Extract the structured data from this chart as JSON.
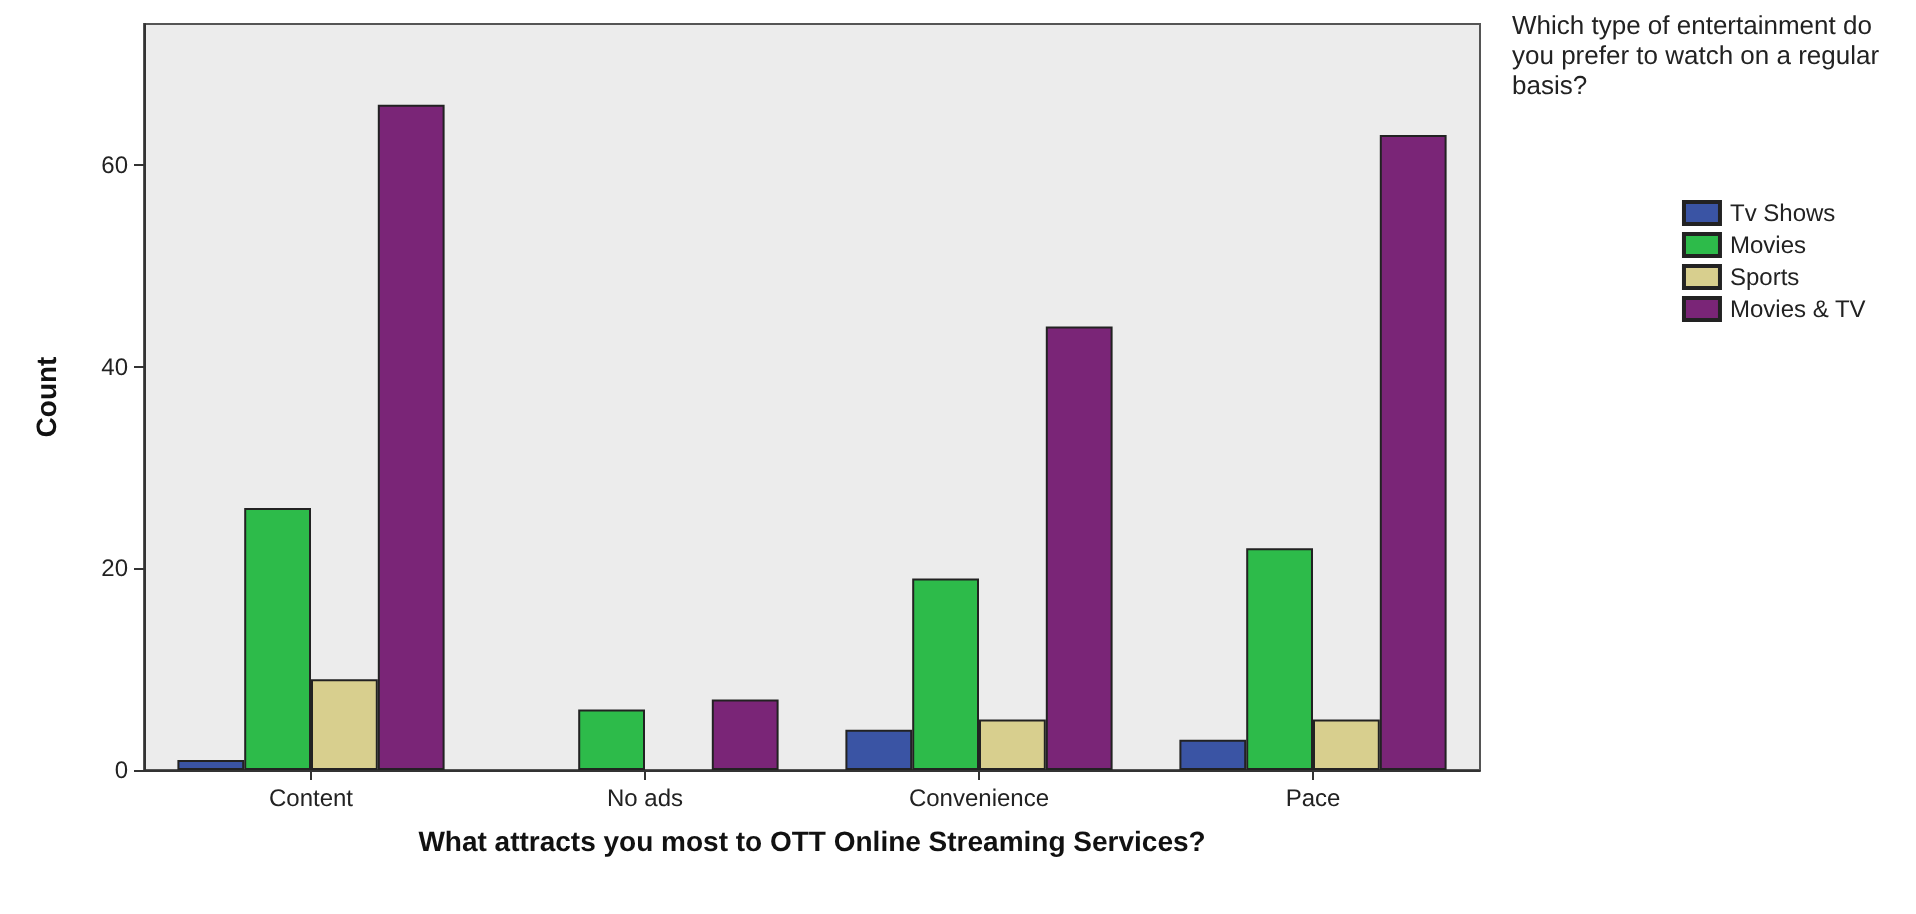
{
  "chart_data": {
    "type": "bar",
    "xlabel": "What attracts you most to OTT Online Streaming Services?",
    "ylabel": "Count",
    "legend_title": "Which type of entertainment do you prefer to watch on a regular basis?",
    "categories": [
      "Content",
      "No ads",
      "Convenience",
      "Pace"
    ],
    "series": [
      {
        "name": "Tv Shows",
        "color": "#3a54a4",
        "values": [
          1,
          null,
          4,
          3
        ]
      },
      {
        "name": "Movies",
        "color": "#2dbb4a",
        "values": [
          26,
          6,
          19,
          22
        ]
      },
      {
        "name": "Sports",
        "color": "#d8cf8e",
        "values": [
          9,
          null,
          5,
          5
        ]
      },
      {
        "name": "Movies & TV",
        "color": "#7a2577",
        "values": [
          66,
          7,
          44,
          63
        ]
      }
    ],
    "ylim": [
      0,
      74
    ],
    "yticks": [
      0,
      20,
      40,
      60
    ],
    "grid": false,
    "legend": "right"
  }
}
